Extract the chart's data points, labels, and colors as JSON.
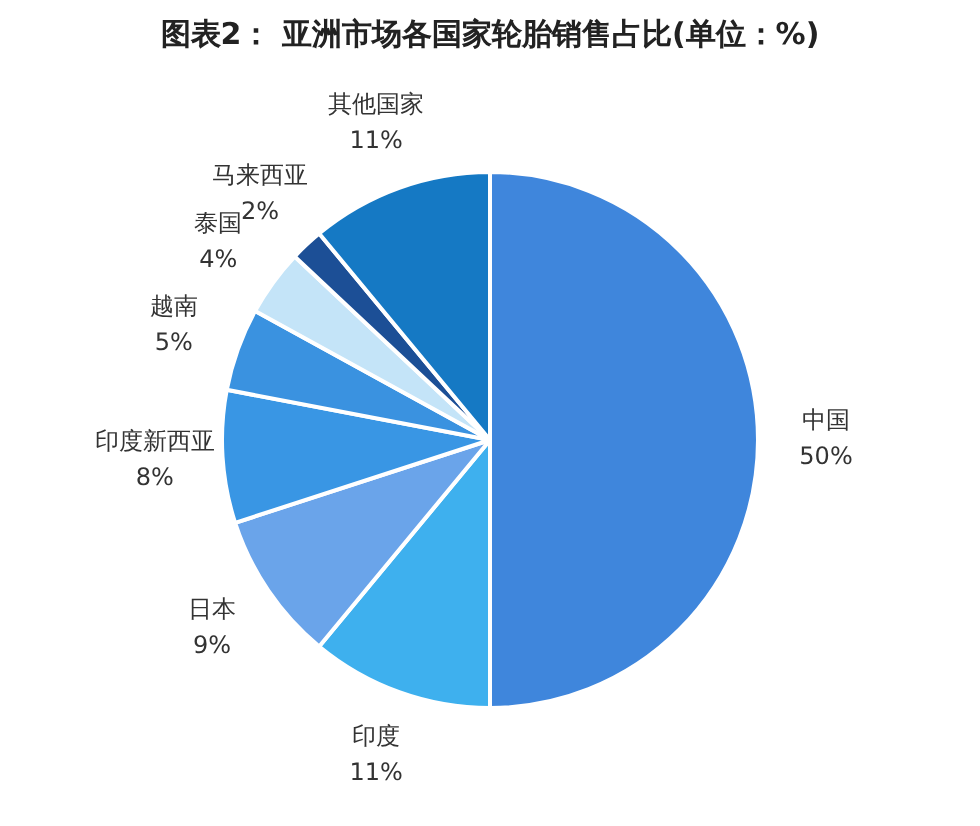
{
  "chart_data": {
    "type": "pie",
    "title": "图表2： 亚洲市场各国家轮胎销售占比(单位：%)",
    "categories": [
      "中国",
      "印度",
      "日本",
      "印度新西亚",
      "越南",
      "泰国",
      "马来西亚",
      "其他国家"
    ],
    "values": [
      50,
      11,
      9,
      8,
      5,
      4,
      2,
      11
    ],
    "value_labels": [
      "50%",
      "11%",
      "9%",
      "8%",
      "5%",
      "4%",
      "2%",
      "11%"
    ],
    "colors": [
      "#3f86dc",
      "#3eb0ee",
      "#6aa4ea",
      "#3996e4",
      "#3a92e0",
      "#c4e4f8",
      "#1c4f96",
      "#1579c4"
    ],
    "legend": false
  }
}
